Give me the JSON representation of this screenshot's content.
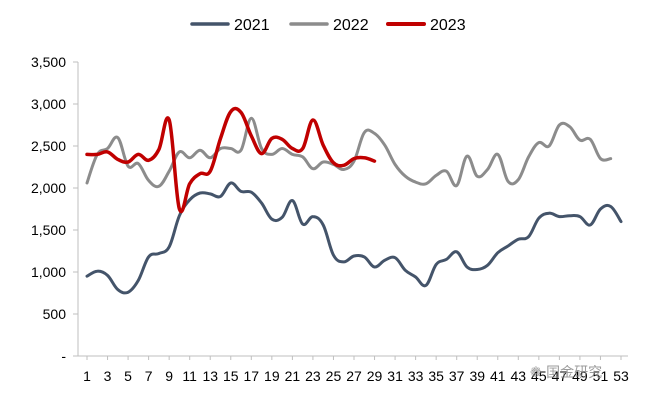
{
  "chart_data": {
    "type": "line",
    "title": "",
    "xlabel": "",
    "ylabel": "",
    "ylim": [
      0,
      3500
    ],
    "xlim": [
      1,
      53
    ],
    "y_ticks": [
      0,
      500,
      1000,
      1500,
      2000,
      2500,
      3000,
      3500
    ],
    "y_tick_labels": [
      "-",
      "500",
      "1,000",
      "1,500",
      "2,000",
      "2,500",
      "3,000",
      "3,500"
    ],
    "x_ticks": [
      1,
      3,
      5,
      7,
      9,
      11,
      13,
      15,
      17,
      19,
      21,
      23,
      25,
      27,
      29,
      31,
      33,
      35,
      37,
      39,
      41,
      43,
      45,
      47,
      49,
      51,
      53
    ],
    "x_tick_labels": [
      "1",
      "3",
      "5",
      "7",
      "9",
      "11",
      "13",
      "15",
      "17",
      "19",
      "21",
      "23",
      "25",
      "27",
      "29",
      "31",
      "33",
      "35",
      "37",
      "39",
      "41",
      "43",
      "45",
      "47",
      "49",
      "51",
      "53"
    ],
    "grid": false,
    "legend_position": "top",
    "series": [
      {
        "name": "2021",
        "color": "#44546a",
        "x": [
          1,
          2,
          3,
          4,
          5,
          6,
          7,
          8,
          9,
          10,
          11,
          12,
          13,
          14,
          15,
          16,
          17,
          18,
          19,
          20,
          21,
          22,
          23,
          24,
          25,
          26,
          27,
          28,
          29,
          30,
          31,
          32,
          33,
          34,
          35,
          36,
          37,
          38,
          39,
          40,
          41,
          42,
          43,
          44,
          45,
          46,
          47,
          48,
          49,
          50,
          51,
          52,
          53
        ],
        "values": [
          950,
          1010,
          960,
          790,
          760,
          900,
          1180,
          1220,
          1300,
          1670,
          1860,
          1940,
          1930,
          1900,
          2060,
          1960,
          1950,
          1820,
          1630,
          1650,
          1850,
          1570,
          1660,
          1560,
          1200,
          1120,
          1190,
          1180,
          1060,
          1140,
          1170,
          1020,
          940,
          840,
          1090,
          1150,
          1240,
          1060,
          1030,
          1080,
          1230,
          1310,
          1390,
          1420,
          1640,
          1700,
          1660,
          1670,
          1660,
          1560,
          1750,
          1780,
          1600
        ]
      },
      {
        "name": "2022",
        "color": "#8c8c8c",
        "x": [
          1,
          2,
          3,
          4,
          5,
          6,
          7,
          8,
          9,
          10,
          11,
          12,
          13,
          14,
          15,
          16,
          17,
          18,
          19,
          20,
          21,
          22,
          23,
          24,
          25,
          26,
          27,
          28,
          29,
          30,
          31,
          32,
          33,
          34,
          35,
          36,
          37,
          38,
          39,
          40,
          41,
          42,
          43,
          44,
          45,
          46,
          47,
          48,
          49,
          50,
          51,
          52
        ],
        "values": [
          2060,
          2400,
          2470,
          2600,
          2260,
          2290,
          2090,
          2020,
          2200,
          2430,
          2360,
          2450,
          2360,
          2470,
          2470,
          2450,
          2830,
          2470,
          2400,
          2470,
          2400,
          2370,
          2230,
          2310,
          2280,
          2220,
          2320,
          2660,
          2650,
          2510,
          2280,
          2140,
          2070,
          2050,
          2150,
          2200,
          2030,
          2380,
          2140,
          2220,
          2400,
          2080,
          2100,
          2370,
          2540,
          2500,
          2750,
          2730,
          2570,
          2580,
          2350,
          2350
        ]
      },
      {
        "name": "2023",
        "color": "#c00000",
        "x": [
          1,
          2,
          3,
          4,
          5,
          6,
          7,
          8,
          9,
          10,
          11,
          12,
          13,
          14,
          15,
          16,
          17,
          18,
          19,
          20,
          21,
          22,
          23,
          24,
          25,
          26,
          27,
          28,
          29
        ],
        "values": [
          2400,
          2400,
          2430,
          2340,
          2310,
          2400,
          2330,
          2460,
          2810,
          1750,
          2050,
          2170,
          2200,
          2590,
          2910,
          2900,
          2620,
          2410,
          2590,
          2580,
          2470,
          2470,
          2810,
          2510,
          2300,
          2270,
          2350,
          2360,
          2320
        ]
      }
    ]
  },
  "watermark": {
    "text": "❁ 国金研究"
  }
}
